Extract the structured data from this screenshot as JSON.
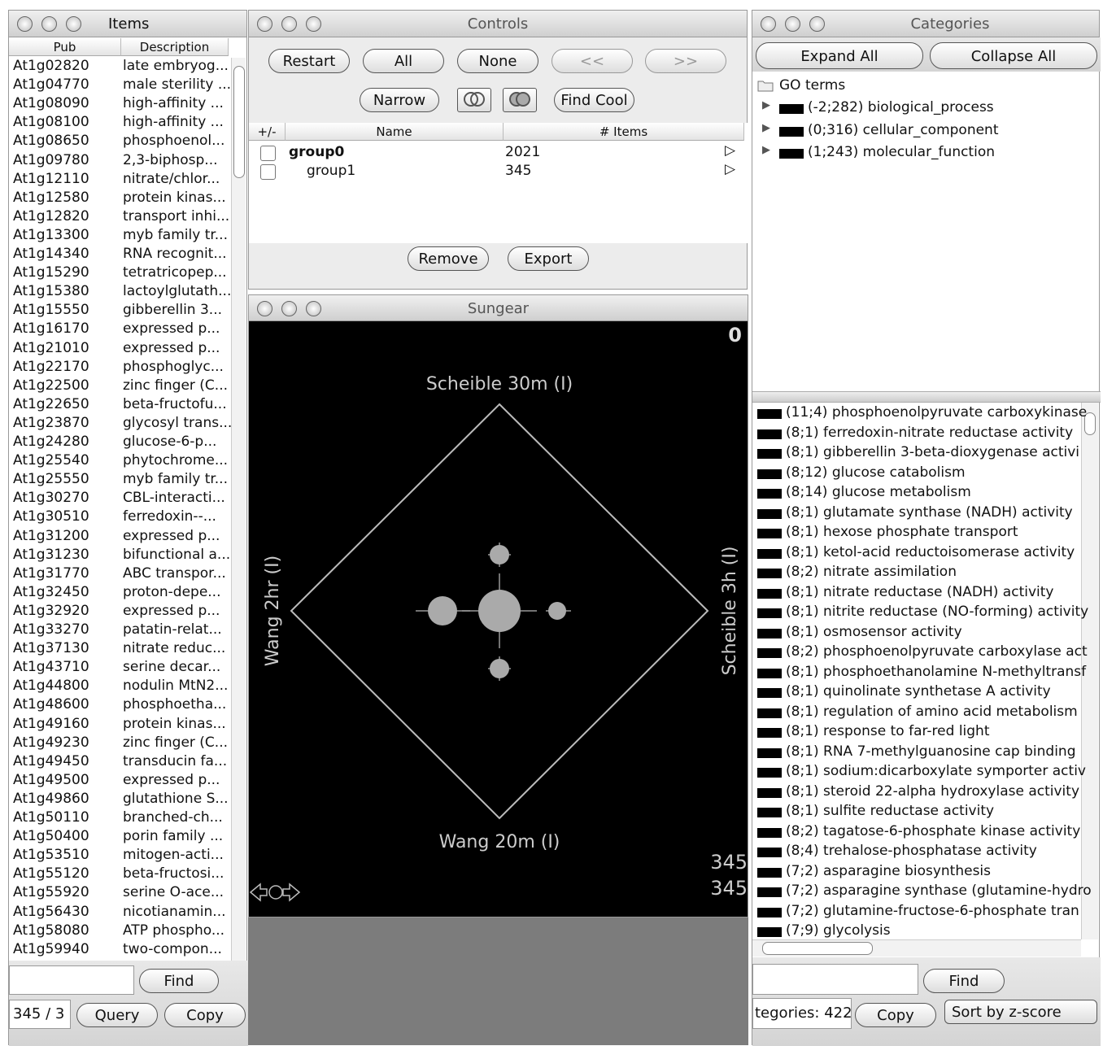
{
  "windows": {
    "items": "Items",
    "controls": "Controls",
    "sungear": "Sungear",
    "categories": "Categories"
  },
  "items": {
    "columns": [
      "Pub",
      "Description"
    ],
    "rows": [
      [
        "At1g02820",
        "late embryog..."
      ],
      [
        "At1g04770",
        "male sterility ..."
      ],
      [
        "At1g08090",
        "high-affinity ..."
      ],
      [
        "At1g08100",
        "high-affinity ..."
      ],
      [
        "At1g08650",
        "phosphoenol..."
      ],
      [
        "At1g09780",
        "2,3-biphosp..."
      ],
      [
        "At1g12110",
        "nitrate/chlor..."
      ],
      [
        "At1g12580",
        "protein kinas..."
      ],
      [
        "At1g12820",
        "transport inhi..."
      ],
      [
        "At1g13300",
        "myb family tr..."
      ],
      [
        "At1g14340",
        "RNA recognit..."
      ],
      [
        "At1g15290",
        "tetratricopep..."
      ],
      [
        "At1g15380",
        "lactoylglutath..."
      ],
      [
        "At1g15550",
        "gibberellin 3..."
      ],
      [
        "At1g16170",
        "expressed p..."
      ],
      [
        "At1g21010",
        "expressed p..."
      ],
      [
        "At1g22170",
        "phosphoglyc..."
      ],
      [
        "At1g22500",
        "zinc finger (C..."
      ],
      [
        "At1g22650",
        "beta-fructofu..."
      ],
      [
        "At1g23870",
        "glycosyl trans..."
      ],
      [
        "At1g24280",
        "glucose-6-p..."
      ],
      [
        "At1g25540",
        "phytochrome..."
      ],
      [
        "At1g25550",
        "myb family tr..."
      ],
      [
        "At1g30270",
        "CBL-interacti..."
      ],
      [
        "At1g30510",
        "ferredoxin--..."
      ],
      [
        "At1g31200",
        "expressed p..."
      ],
      [
        "At1g31230",
        "bifunctional a..."
      ],
      [
        "At1g31770",
        "ABC transpor..."
      ],
      [
        "At1g32450",
        "proton-depe..."
      ],
      [
        "At1g32920",
        "expressed p..."
      ],
      [
        "At1g33270",
        "patatin-relat..."
      ],
      [
        "At1g37130",
        "nitrate reduc..."
      ],
      [
        "At1g43710",
        "serine decar..."
      ],
      [
        "At1g44800",
        "nodulin MtN2..."
      ],
      [
        "At1g48600",
        "phosphoetha..."
      ],
      [
        "At1g49160",
        "protein kinas..."
      ],
      [
        "At1g49230",
        "zinc finger (C..."
      ],
      [
        "At1g49450",
        "transducin fa..."
      ],
      [
        "At1g49500",
        "expressed p..."
      ],
      [
        "At1g49860",
        "glutathione S..."
      ],
      [
        "At1g50110",
        "branched-ch..."
      ],
      [
        "At1g50400",
        "porin family ..."
      ],
      [
        "At1g53510",
        "mitogen-acti..."
      ],
      [
        "At1g55120",
        "beta-fructosi..."
      ],
      [
        "At1g55920",
        "serine O-ace..."
      ],
      [
        "At1g56430",
        "nicotianamin..."
      ],
      [
        "At1g58080",
        "ATP phospho..."
      ],
      [
        "At1g59940",
        "two-compon..."
      ]
    ],
    "find": "Find",
    "count": "345 / 3",
    "query": "Query",
    "copy": "Copy"
  },
  "controls": {
    "buttons": [
      "Restart",
      "All",
      "None",
      "<<",
      ">>"
    ],
    "narrow": "Narrow",
    "find_cool": "Find Cool",
    "columns": [
      "+/-",
      "Name",
      "# Items"
    ],
    "groups": [
      [
        "group0",
        2021
      ],
      [
        "group1",
        345
      ]
    ],
    "remove": "Remove",
    "export": "Export"
  },
  "sungear": {
    "top_count": "0",
    "vertices": {
      "top": "Scheible 30m (I)",
      "left": "Wang 2hr (I)",
      "right": "Scheible 3h (I)",
      "bottom": "Wang 20m (I)"
    },
    "bottom_counts": [
      "345",
      "345"
    ]
  },
  "categories": {
    "expand": "Expand All",
    "collapse": "Collapse All",
    "root": "GO terms",
    "tree": [
      "(-2;282) biological_process",
      "(0;316) cellular_component",
      "(1;243) molecular_function"
    ],
    "list": [
      "(11;4) phosphoenolpyruvate carboxykinase",
      "(8;1) ferredoxin-nitrate reductase activity",
      "(8;1) gibberellin 3-beta-dioxygenase activi",
      "(8;12) glucose catabolism",
      "(8;14) glucose metabolism",
      "(8;1) glutamate synthase (NADH) activity",
      "(8;1) hexose phosphate transport",
      "(8;1) ketol-acid reductoisomerase activity",
      "(8;2) nitrate assimilation",
      "(8;1) nitrate reductase (NADH) activity",
      "(8;1) nitrite reductase (NO-forming) activity",
      "(8;1) osmosensor activity",
      "(8;2) phosphoenolpyruvate carboxylase act",
      "(8;1) phosphoethanolamine N-methyltransf",
      "(8;1) quinolinate synthetase A activity",
      "(8;1) regulation of amino acid metabolism",
      "(8;1) response to far-red light",
      "(8;1) RNA 7-methylguanosine cap binding",
      "(8;1) sodium:dicarboxylate symporter activ",
      "(8;1) steroid 22-alpha hydroxylase activity",
      "(8;1) sulfite reductase activity",
      "(8;2) tagatose-6-phosphate kinase activity",
      "(8;4) trehalose-phosphatase activity",
      "(7;2) asparagine biosynthesis",
      "(7;2) asparagine synthase (glutamine-hydro",
      "(7;2) glutamine-fructose-6-phosphate tran",
      "(7;9) glycolysis"
    ],
    "count": "tegories: 422",
    "find": "Find",
    "copy": "Copy",
    "sort": "Sort by z-score"
  }
}
